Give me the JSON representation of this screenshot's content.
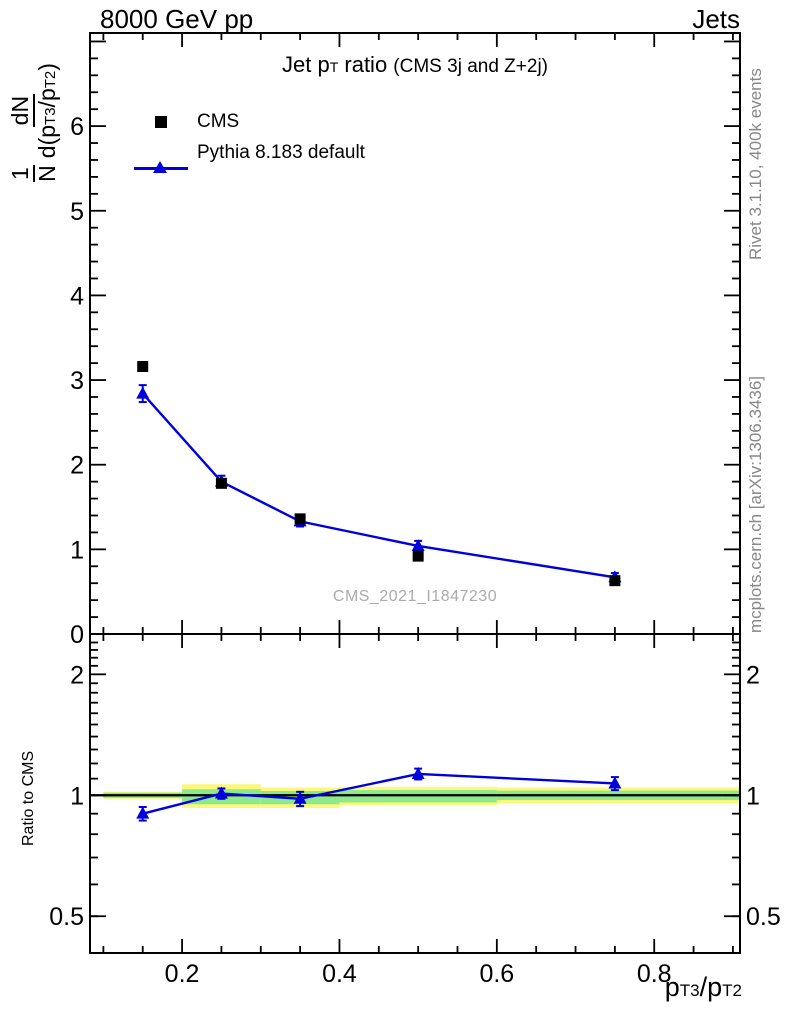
{
  "header": {
    "left": "8000 GeV pp",
    "right": "Jets"
  },
  "plot_title": {
    "prefix": "Jet p",
    "subscript": "T",
    "suffix": " ratio ",
    "note": "(CMS 3j and Z+2j)"
  },
  "legend": {
    "items": [
      {
        "label": "CMS",
        "marker": "black-square",
        "color": "#000000"
      },
      {
        "label": "Pythia 8.183 default",
        "marker": "blue-line-triangle",
        "color": "#0000dd"
      }
    ]
  },
  "watermark": "CMS_2021_I1847230",
  "side_text": {
    "top": "Rivet 3.1.10,  400k events",
    "bottom": "mcplots.cern.ch [arXiv:1306.3436]"
  },
  "axes": {
    "x_label_parts": {
      "p1": "p",
      "s1": "T3",
      "p2": "/p",
      "s2": "T2"
    },
    "y_label_parts": {
      "f1_num": "1",
      "f1_den": "N",
      "f2_num": "dN",
      "f2_den_a": "d(p",
      "f2_den_s1": "T3",
      "f2_den_b": "/p",
      "f2_den_s2": "T2",
      "f2_den_c": ")"
    },
    "ratio_y_label": "Ratio to CMS"
  },
  "chart_data": {
    "type": "line",
    "title": "Jet pT ratio (CMS 3j and Z+2j)",
    "xlabel": "pT3/pT2",
    "ylabel": "1/N dN/d(pT3/pT2)",
    "x": [
      0.15,
      0.25,
      0.35,
      0.5,
      0.75
    ],
    "series": [
      {
        "name": "CMS",
        "marker": "square",
        "color": "#000000",
        "values": [
          3.16,
          1.78,
          1.36,
          0.92,
          0.63
        ]
      },
      {
        "name": "Pythia 8.183 default",
        "marker": "triangle",
        "color": "#0000dd",
        "line": true,
        "values": [
          2.84,
          1.8,
          1.33,
          1.04,
          0.67
        ],
        "yerr": [
          0.1,
          0.07,
          0.06,
          0.06,
          0.05
        ]
      }
    ],
    "xlim": [
      0.083,
      0.909
    ],
    "ylim": [
      0,
      7.1
    ],
    "xticks": [
      0.2,
      0.4,
      0.6,
      0.8
    ],
    "xminor": {
      "from": 0.1,
      "to": 0.9,
      "step": 0.05
    },
    "yticks": [
      0,
      1,
      2,
      3,
      4,
      5,
      6
    ],
    "yminor_step": 0.2,
    "grid": false,
    "legend_position": "top-left",
    "ratio": {
      "label": "Ratio to CMS",
      "scale": "log",
      "ylim": [
        0.405,
        2.52
      ],
      "yticks": [
        0.5,
        1,
        2
      ],
      "values": [
        0.9,
        1.01,
        0.98,
        1.13,
        1.07
      ],
      "yerr": [
        0.035,
        0.03,
        0.04,
        0.035,
        0.04
      ],
      "ref_line": 1,
      "bands": [
        {
          "x0": 0.1,
          "x1": 0.2,
          "outer_lo": 0.98,
          "outer_hi": 1.02,
          "inner_lo": 0.985,
          "inner_hi": 1.015
        },
        {
          "x0": 0.2,
          "x1": 0.3,
          "outer_lo": 0.93,
          "outer_hi": 1.065,
          "inner_lo": 0.95,
          "inner_hi": 1.035
        },
        {
          "x0": 0.3,
          "x1": 0.4,
          "outer_lo": 0.93,
          "outer_hi": 1.045,
          "inner_lo": 0.95,
          "inner_hi": 1.025
        },
        {
          "x0": 0.4,
          "x1": 0.6,
          "outer_lo": 0.945,
          "outer_hi": 1.05,
          "inner_lo": 0.96,
          "inner_hi": 1.03
        },
        {
          "x0": 0.6,
          "x1": 0.909,
          "outer_lo": 0.955,
          "outer_hi": 1.045,
          "inner_lo": 0.973,
          "inner_hi": 1.027
        }
      ],
      "colors": {
        "outer_band": "#fbf87a",
        "inner_band": "#8ce98c",
        "ref_line": "#000000"
      }
    }
  }
}
